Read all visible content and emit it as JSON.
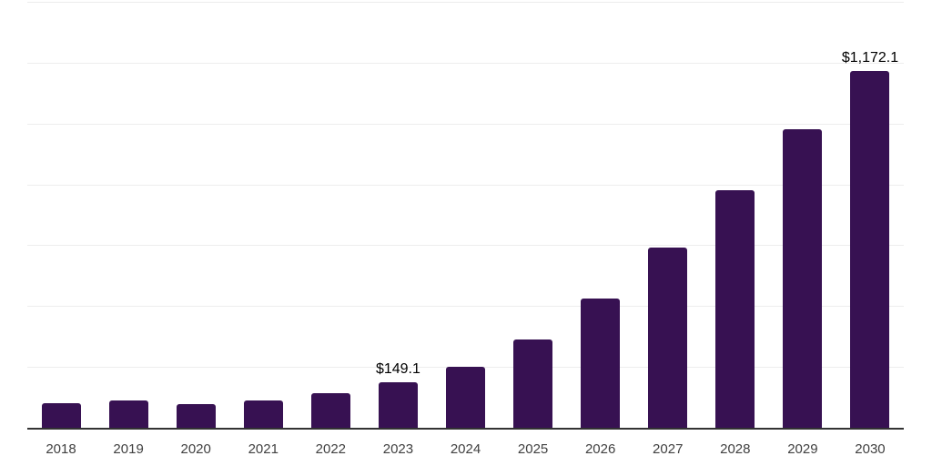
{
  "chart_data": {
    "type": "bar",
    "title": "",
    "xlabel": "",
    "ylabel": "",
    "categories": [
      "2018",
      "2019",
      "2020",
      "2021",
      "2022",
      "2023",
      "2024",
      "2025",
      "2026",
      "2027",
      "2028",
      "2029",
      "2030"
    ],
    "values": [
      80,
      90,
      77,
      90,
      114,
      149.1,
      201,
      290,
      425,
      591,
      781,
      980,
      1172.1
    ],
    "bar_labels": [
      "",
      "",
      "",
      "",
      "",
      "$149.1",
      "",
      "",
      "",
      "",
      "",
      "",
      "$1,172.1"
    ],
    "ylim": [
      0,
      1400
    ],
    "gridline_step": 200,
    "grid": true,
    "legend": false,
    "legend_position": "none",
    "bar_color": "#371152",
    "axis_color": "#333333",
    "gridline_color": "#ededed",
    "value_label_color": "#000000",
    "tick_label_color": "#404040"
  }
}
